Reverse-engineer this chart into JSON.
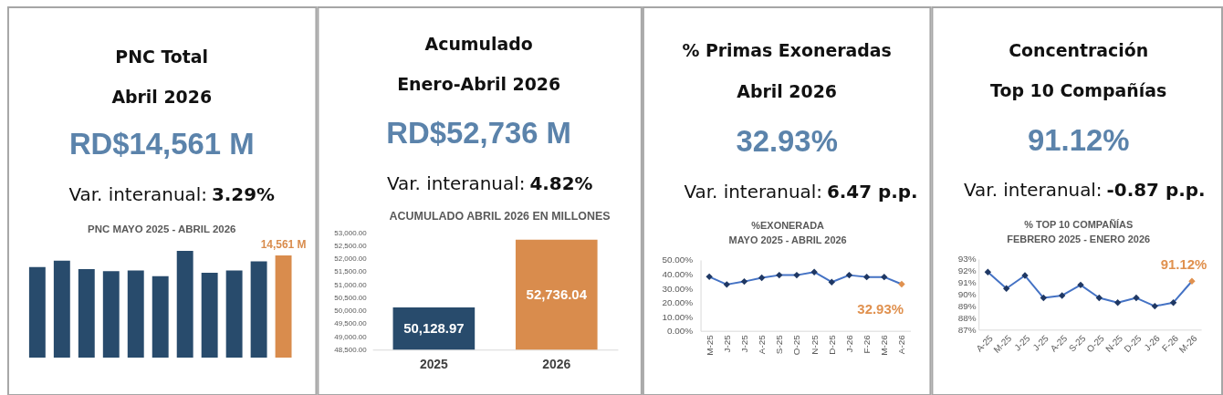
{
  "chart_data": [
    {
      "type": "other",
      "title": "PNC Total",
      "subtitle": "Abril 2026",
      "annotations": [
        "RD$14,561 M",
        "Var. interanual:",
        "3.29%"
      ]
    },
    {
      "type": "bar",
      "title": "PNC MAYO 2025 - ABRIL 2026",
      "categories": [
        null,
        null,
        null,
        null,
        null,
        null,
        null,
        null,
        null,
        null,
        null
      ],
      "values": [
        12900,
        13800,
        12600,
        12300,
        12400,
        11600,
        15200,
        12100,
        12400,
        13700,
        14561
      ],
      "colors": [
        "#284b6c",
        "#284b6c",
        "#284b6c",
        "#284b6c",
        "#284b6c",
        "#284b6c",
        "#284b6c",
        "#284b6c",
        "#284b6c",
        "#284b6c",
        "#d98c4d"
      ],
      "value_labels": [
        null,
        null,
        null,
        null,
        null,
        null,
        null,
        null,
        null,
        null,
        "14,561 M"
      ],
      "tick_labels": false
    },
    {
      "type": "other",
      "title": "Acumulado",
      "subtitle": "Enero-Abril 2026",
      "annotations": [
        "RD$52,736 M",
        "Var. interanual:",
        "4.82%"
      ]
    },
    {
      "type": "bar",
      "title": "ACUMULADO ABRIL 2026 EN MILLONES",
      "categories": [
        "2025",
        "2026"
      ],
      "values": [
        50128.97,
        52736.04
      ],
      "colors": [
        "#284b6c",
        "#d98c4d"
      ],
      "value_labels": [
        "50,128.97",
        "52,736.04"
      ],
      "ylim": [
        48500,
        53000
      ],
      "yticks": [
        {
          "value": 48500,
          "label": "48,500.00"
        },
        {
          "value": 49000,
          "label": "49,000.00"
        },
        {
          "value": 49500,
          "label": "49,500.00"
        },
        {
          "value": 50000,
          "label": "50,000.00"
        },
        {
          "value": 50500,
          "label": "50,500.00"
        },
        {
          "value": 51000,
          "label": "51,000.00"
        },
        {
          "value": 51500,
          "label": "51,500.00"
        },
        {
          "value": 52000,
          "label": "52,000.00"
        },
        {
          "value": 52500,
          "label": "52,500.00"
        },
        {
          "value": 53000,
          "label": "53,000.00"
        }
      ]
    },
    {
      "type": "other",
      "title": "% Primas Exoneradas",
      "subtitle": "Abril 2026",
      "annotations": [
        "32.93%",
        "Var. interanual:",
        "6.47 p.p."
      ]
    },
    {
      "type": "line",
      "title": "%EXONERADA",
      "subtitle": "MAYO 2025 - ABRIL 2026",
      "categories": [
        "M-25",
        "J-25",
        "J-25",
        "A-25",
        "S-25",
        "O-25",
        "N-25",
        "D-25",
        "J-26",
        "F-26",
        "M-26",
        "A-26"
      ],
      "values": [
        38.2,
        32.7,
        34.8,
        37.4,
        39.3,
        39.3,
        41.5,
        34.4,
        39.3,
        38.0,
        38.0,
        32.93
      ],
      "color": "#4472c4",
      "colors": [
        "#1f3864",
        "#1f3864",
        "#1f3864",
        "#1f3864",
        "#1f3864",
        "#1f3864",
        "#1f3864",
        "#1f3864",
        "#1f3864",
        "#1f3864",
        "#1f3864",
        "#e0914f"
      ],
      "value_labels": [
        null,
        null,
        null,
        null,
        null,
        null,
        null,
        null,
        null,
        null,
        null,
        "32.93%"
      ],
      "ylim": [
        0,
        50
      ],
      "yticks": [
        {
          "value": 0,
          "label": "0.00%"
        },
        {
          "value": 10,
          "label": "10.00%"
        },
        {
          "value": 20,
          "label": "20.00%"
        },
        {
          "value": 30,
          "label": "30.00%"
        },
        {
          "value": 40,
          "label": "40.00%"
        },
        {
          "value": 50,
          "label": "50.00%"
        }
      ],
      "marker": "diamond",
      "line_style": "solid"
    },
    {
      "type": "other",
      "title": "Concentración",
      "subtitle": "Top 10 Compañías",
      "annotations": [
        "91.12%",
        "Var. interanual:",
        "-0.87 p.p."
      ]
    },
    {
      "type": "line",
      "title": "% TOP 10 COMPAÑÍAS",
      "subtitle": "FEBRERO 2025 - ENERO 2026",
      "categories": [
        "A-25",
        "M-25",
        "J-25",
        "J-25",
        "A-25",
        "S-25",
        "O-25",
        "N-25",
        "D-25",
        "J-26",
        "F-26",
        "M-26"
      ],
      "values": [
        91.9,
        90.5,
        91.6,
        89.7,
        89.9,
        90.8,
        89.7,
        89.3,
        89.7,
        89.0,
        89.3,
        91.12
      ],
      "color": "#4472c4",
      "colors": [
        "#1f3864",
        "#1f3864",
        "#1f3864",
        "#1f3864",
        "#1f3864",
        "#1f3864",
        "#1f3864",
        "#1f3864",
        "#1f3864",
        "#1f3864",
        "#1f3864",
        "#e0914f"
      ],
      "value_labels": [
        null,
        null,
        null,
        null,
        null,
        null,
        null,
        null,
        null,
        null,
        null,
        "91.12%"
      ],
      "ylim": [
        87,
        93
      ],
      "yticks": [
        {
          "value": 87,
          "label": "87%"
        },
        {
          "value": 88,
          "label": "88%"
        },
        {
          "value": 89,
          "label": "89%"
        },
        {
          "value": 90,
          "label": "90%"
        },
        {
          "value": 91,
          "label": "91%"
        },
        {
          "value": 92,
          "label": "92%"
        },
        {
          "value": 93,
          "label": "93%"
        }
      ],
      "marker": "diamond",
      "line_style": "solid"
    }
  ]
}
